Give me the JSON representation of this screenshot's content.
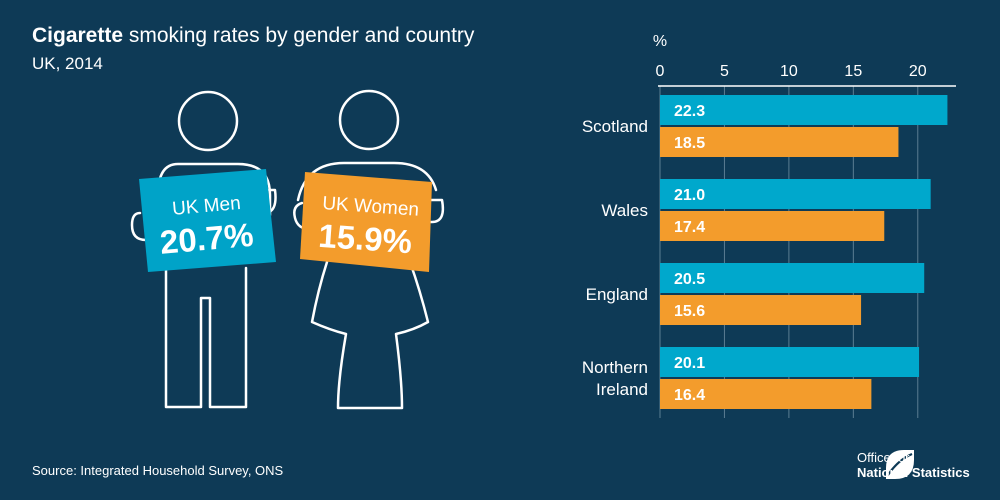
{
  "header": {
    "title_bold": "Cigarette",
    "title_rest": " smoking rates by gender and country",
    "subtitle": "UK, 2014"
  },
  "figures": {
    "men_label": "UK Men",
    "men_value": "20.7%",
    "women_label": "UK Women",
    "women_value": "15.9%",
    "colors": {
      "men": "#00a3c8",
      "women": "#f39c2c",
      "outline": "#ffffff"
    }
  },
  "chart_data": {
    "type": "bar",
    "orientation": "horizontal",
    "unit_label": "%",
    "categories": [
      [
        "Scotland"
      ],
      [
        "Wales"
      ],
      [
        "England"
      ],
      [
        "Northern",
        "Ireland"
      ]
    ],
    "series": [
      {
        "values": [
          22.3,
          21.0,
          20.5,
          20.1
        ],
        "labels": [
          "22.3",
          "21.0",
          "20.5",
          "20.1"
        ],
        "color": "#00a8cc"
      },
      {
        "values": [
          18.5,
          17.4,
          15.6,
          16.4
        ],
        "labels": [
          "18.5",
          "17.4",
          "15.6",
          "16.4"
        ],
        "color": "#f39c2c"
      }
    ],
    "xlim": [
      0,
      22.5
    ],
    "xticks": [
      0,
      5,
      10,
      15,
      20
    ],
    "xtick_labels": [
      "0",
      "5",
      "10",
      "15",
      "20"
    ],
    "grid": true,
    "axis_position": "top"
  },
  "footer": {
    "source": "Source: Integrated Household Survey, ONS",
    "logo_line1": "Office for",
    "logo_line2": "National Statistics"
  }
}
